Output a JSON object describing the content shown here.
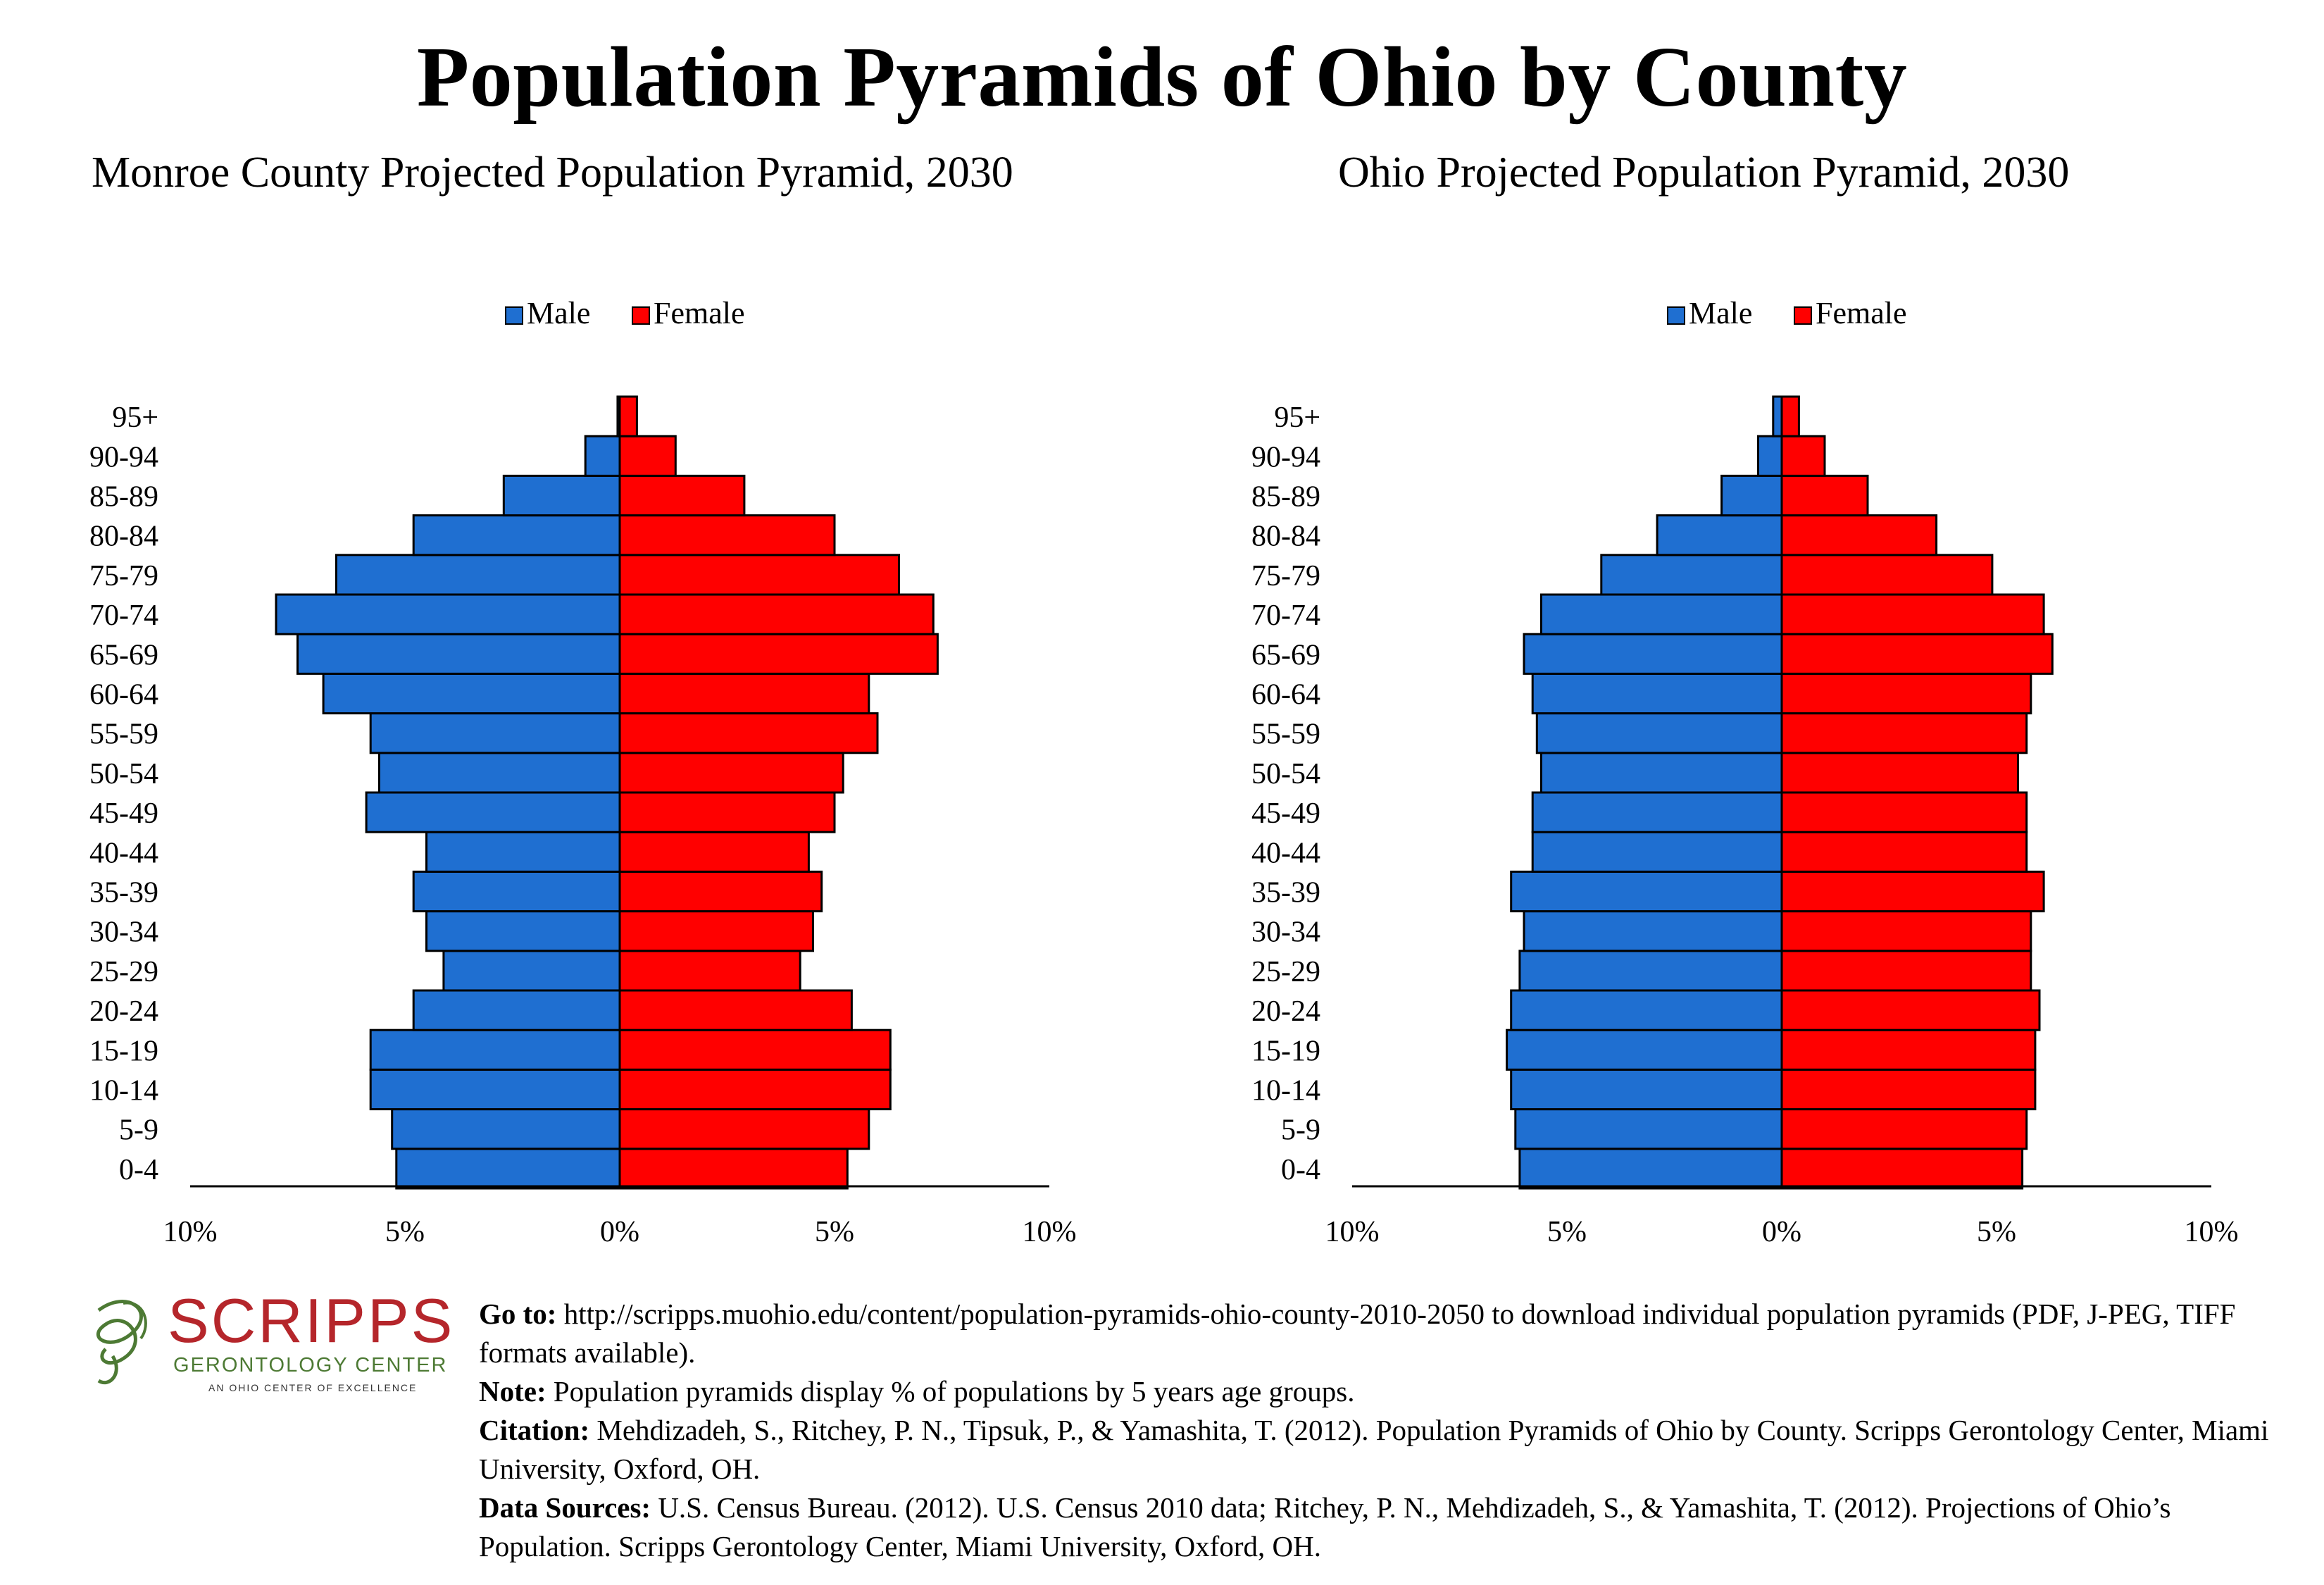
{
  "page": {
    "title": "Population Pyramids of Ohio by County"
  },
  "colors": {
    "male": "#1f6fd1",
    "female": "#ff0000",
    "bar_stroke": "#000000",
    "logo_red": "#b5262b",
    "logo_green": "#4d7a34"
  },
  "chart_data": [
    {
      "type": "bar",
      "orientation": "horizontal-pyramid",
      "title": "Monroe County Projected Population Pyramid, 2030",
      "legend": [
        "Male",
        "Female"
      ],
      "legend_position": "top-center",
      "grid": false,
      "categories": [
        "0-4",
        "5-9",
        "10-14",
        "15-19",
        "20-24",
        "25-29",
        "30-34",
        "35-39",
        "40-44",
        "45-49",
        "50-54",
        "55-59",
        "60-64",
        "65-69",
        "70-74",
        "75-79",
        "80-84",
        "85-89",
        "90-94",
        "95+"
      ],
      "series": [
        {
          "name": "Male",
          "values": [
            5.2,
            5.3,
            5.8,
            5.8,
            4.8,
            4.1,
            4.5,
            4.8,
            4.5,
            5.9,
            5.6,
            5.8,
            6.9,
            7.5,
            8.0,
            6.6,
            4.8,
            2.7,
            0.8,
            0.05
          ]
        },
        {
          "name": "Female",
          "values": [
            5.3,
            5.8,
            6.3,
            6.3,
            5.4,
            4.2,
            4.5,
            4.7,
            4.4,
            5.0,
            5.2,
            6.0,
            5.8,
            7.4,
            7.3,
            6.5,
            5.0,
            2.9,
            1.3,
            0.4
          ]
        }
      ],
      "x_tick_labels": [
        "10%",
        "5%",
        "0%",
        "5%",
        "10%"
      ],
      "xlim": [
        -10,
        10
      ]
    },
    {
      "type": "bar",
      "orientation": "horizontal-pyramid",
      "title": "Ohio Projected Population Pyramid, 2030",
      "legend": [
        "Male",
        "Female"
      ],
      "legend_position": "top-center",
      "grid": false,
      "categories": [
        "0-4",
        "5-9",
        "10-14",
        "15-19",
        "20-24",
        "25-29",
        "30-34",
        "35-39",
        "40-44",
        "45-49",
        "50-54",
        "55-59",
        "60-64",
        "65-69",
        "70-74",
        "75-79",
        "80-84",
        "85-89",
        "90-94",
        "95+"
      ],
      "series": [
        {
          "name": "Male",
          "values": [
            6.1,
            6.2,
            6.3,
            6.4,
            6.3,
            6.1,
            6.0,
            6.3,
            5.8,
            5.8,
            5.6,
            5.7,
            5.8,
            6.0,
            5.6,
            4.2,
            2.9,
            1.4,
            0.55,
            0.2
          ]
        },
        {
          "name": "Female",
          "values": [
            5.6,
            5.7,
            5.9,
            5.9,
            6.0,
            5.8,
            5.8,
            6.1,
            5.7,
            5.7,
            5.5,
            5.7,
            5.8,
            6.3,
            6.1,
            4.9,
            3.6,
            2.0,
            1.0,
            0.4
          ]
        }
      ],
      "x_tick_labels": [
        "10%",
        "5%",
        "0%",
        "5%",
        "10%"
      ],
      "xlim": [
        -10,
        10
      ]
    }
  ],
  "footer": {
    "goto_label": "Go to:",
    "goto_text": "http://scripps.muohio.edu/content/population-pyramids-ohio-county-2010-2050 to download individual population pyramids (PDF, J-PEG, TIFF formats available).",
    "note_label": "Note:",
    "note_text": "Population pyramids display % of populations by 5 years age groups.",
    "citation_label": "Citation:",
    "citation_text": "Mehdizadeh, S., Ritchey, P. N., Tipsuk, P., & Yamashita, T. (2012). Population Pyramids of Ohio by County. Scripps Gerontology Center, Miami University, Oxford, OH.",
    "sources_label": "Data Sources:",
    "sources_text": "U.S. Census Bureau. (2012). U.S. Census 2010 data; Ritchey, P. N., Mehdizadeh, S., & Yamashita, T. (2012). Projections of Ohio’s Population. Scripps Gerontology Center, Miami University, Oxford, OH."
  },
  "logo": {
    "name": "SCRIPPS",
    "subtitle": "GERONTOLOGY CENTER",
    "tagline": "AN OHIO CENTER OF EXCELLENCE"
  }
}
